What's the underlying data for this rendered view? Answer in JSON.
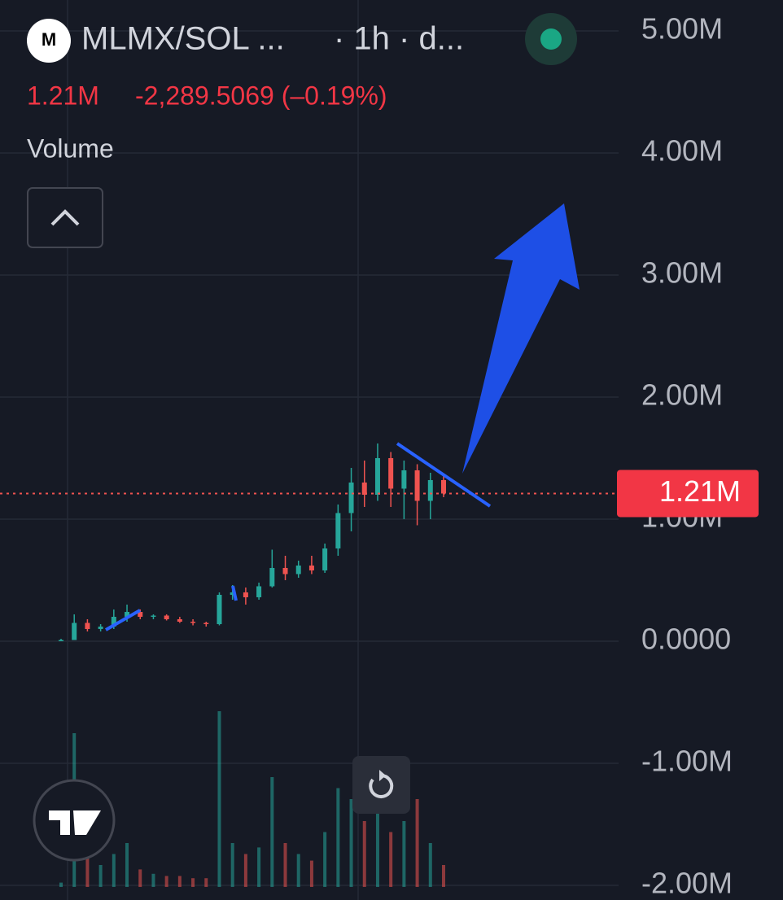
{
  "chart_data": {
    "type": "candlestick",
    "title": "MLMX/SOL ...",
    "subtitle": "· 1h · d...",
    "price": "1.21M",
    "change": "-2,289.5069 (–0.19%)",
    "volume_label": "Volume",
    "last_price": {
      "value": 1210000,
      "label": "1.21M"
    },
    "categories": [
      null,
      null,
      null,
      null,
      null,
      null,
      null,
      null,
      null,
      null,
      null,
      null,
      null,
      null,
      null,
      null,
      null,
      null,
      null,
      null,
      null,
      null,
      null,
      null,
      null,
      null,
      null,
      null,
      null,
      null
    ],
    "open": [
      0,
      10000,
      150000,
      100000,
      120000,
      200000,
      240000,
      200000,
      210000,
      180000,
      160000,
      150000,
      140000,
      380000,
      400000,
      360000,
      450000,
      600000,
      550000,
      620000,
      580000,
      760000,
      1050000,
      1300000,
      1200000,
      1500000,
      1250000,
      1400000,
      1150000,
      1320000
    ],
    "high": [
      20000,
      220000,
      180000,
      140000,
      260000,
      300000,
      260000,
      220000,
      220000,
      200000,
      180000,
      160000,
      400000,
      460000,
      440000,
      480000,
      750000,
      700000,
      660000,
      700000,
      800000,
      1120000,
      1420000,
      1480000,
      1620000,
      1550000,
      1480000,
      1450000,
      1380000,
      1360000
    ],
    "low": [
      0,
      10000,
      80000,
      80000,
      100000,
      160000,
      180000,
      180000,
      170000,
      150000,
      130000,
      120000,
      130000,
      340000,
      300000,
      340000,
      440000,
      500000,
      520000,
      550000,
      560000,
      700000,
      900000,
      1100000,
      1150000,
      1100000,
      1000000,
      950000,
      1000000,
      1180000
    ],
    "close": [
      10000,
      150000,
      100000,
      120000,
      200000,
      240000,
      200000,
      210000,
      180000,
      160000,
      150000,
      140000,
      380000,
      400000,
      360000,
      450000,
      600000,
      550000,
      620000,
      580000,
      760000,
      1050000,
      1300000,
      1200000,
      1500000,
      1250000,
      1400000,
      1150000,
      1320000,
      1210000
    ],
    "volume": [
      2,
      70,
      20,
      10,
      15,
      20,
      8,
      6,
      5,
      5,
      4,
      4,
      80,
      20,
      15,
      18,
      50,
      20,
      15,
      12,
      25,
      45,
      40,
      30,
      35,
      25,
      30,
      40,
      20,
      10
    ],
    "volume_lim": [
      0,
      100
    ],
    "up_color": "#26a69a",
    "down_color": "#ef5350",
    "ylim": [
      -2120000,
      5253000
    ],
    "yticks": [
      {
        "value": 5000000,
        "label": "5.00M"
      },
      {
        "value": 4000000,
        "label": "4.00M"
      },
      {
        "value": 3000000,
        "label": "3.00M"
      },
      {
        "value": 2000000,
        "label": "2.00M"
      },
      {
        "value": 1000000,
        "label": "1.00M"
      },
      {
        "value": 0,
        "label": "0.0000"
      },
      {
        "value": -1000000,
        "label": "-1.00M"
      },
      {
        "value": -2000000,
        "label": "-2.00M"
      }
    ],
    "grid": true
  }
}
